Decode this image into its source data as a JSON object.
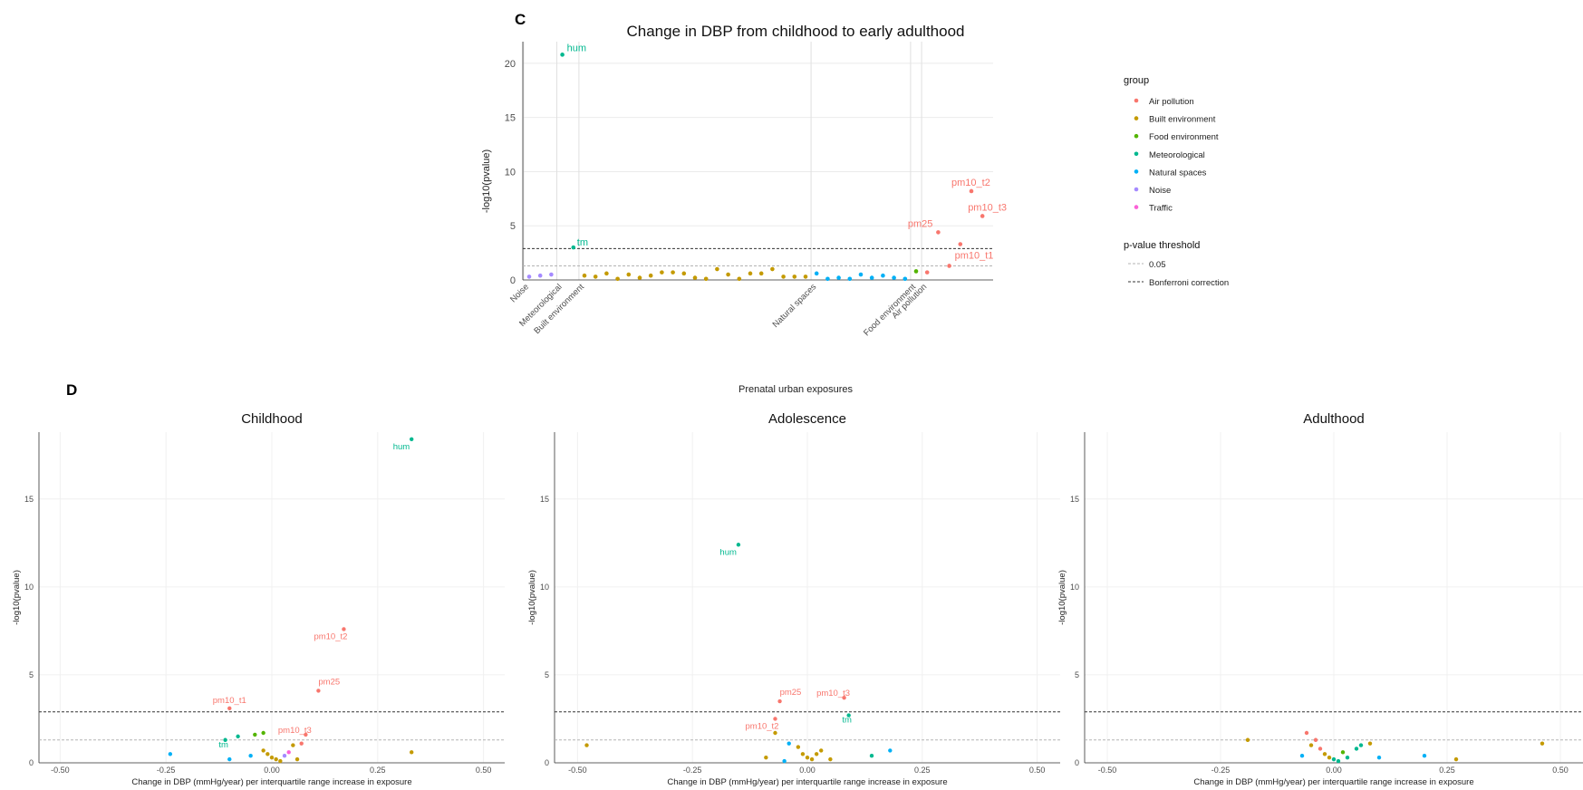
{
  "panel_c": {
    "letter": "C",
    "title": "Change in DBP from childhood to early adulthood",
    "xlabel": "Prenatal urban exposures",
    "ylabel": "-log10(pvalue)"
  },
  "panel_d": {
    "letter": "D",
    "xlabel": "Change in DBP (mmHg/year) per interquartile range increase in exposure",
    "ylabel": "-log10(pvalue)"
  },
  "legend": {
    "group_title": "group",
    "threshold_title": "p-value threshold",
    "threshold_items": [
      "0.05",
      "Bonferroni correction"
    ]
  },
  "colors": {
    "Air pollution": "#F8766D",
    "Built environment": "#C49A00",
    "Food environment": "#53B400",
    "Meteorological": "#00B88F",
    "Natural spaces": "#00B0F6",
    "Noise": "#A58AFF",
    "Traffic": "#FB61D7",
    "threshold_dark": "#333333",
    "threshold_light": "#b3b3b3"
  },
  "chart_data": [
    {
      "type": "scatter",
      "title": "Change in DBP from childhood to early adulthood",
      "xlabel": "Prenatal urban exposures",
      "ylabel": "-log10(pvalue)",
      "ylim": [
        0,
        22
      ],
      "yticks": [
        0,
        5,
        10,
        15,
        20
      ],
      "categories": [
        "Noise",
        "Traffic",
        "Meteorological",
        "Built environment",
        "Natural spaces",
        "Food environment",
        "Air pollution"
      ],
      "thresholds": {
        "p_0.05": 1.3,
        "bonferroni": 2.9
      },
      "legend_position": "right",
      "grid": true,
      "points": [
        {
          "i": 1,
          "y": 0.3,
          "group": "Noise"
        },
        {
          "i": 2,
          "y": 0.4,
          "group": "Noise"
        },
        {
          "i": 3,
          "y": 0.5,
          "group": "Noise"
        },
        {
          "i": 4,
          "y": 20.8,
          "group": "Meteorological",
          "label": "hum"
        },
        {
          "i": 5,
          "y": 3.0,
          "group": "Meteorological",
          "label": "tm"
        },
        {
          "i": 6,
          "y": 0.4,
          "group": "Built environment"
        },
        {
          "i": 7,
          "y": 0.3,
          "group": "Built environment"
        },
        {
          "i": 8,
          "y": 0.6,
          "group": "Built environment"
        },
        {
          "i": 9,
          "y": 0.1,
          "group": "Built environment"
        },
        {
          "i": 10,
          "y": 0.5,
          "group": "Built environment"
        },
        {
          "i": 11,
          "y": 0.2,
          "group": "Built environment"
        },
        {
          "i": 12,
          "y": 0.4,
          "group": "Built environment"
        },
        {
          "i": 13,
          "y": 0.7,
          "group": "Built environment"
        },
        {
          "i": 14,
          "y": 0.7,
          "group": "Built environment"
        },
        {
          "i": 15,
          "y": 0.6,
          "group": "Built environment"
        },
        {
          "i": 16,
          "y": 0.2,
          "group": "Built environment"
        },
        {
          "i": 17,
          "y": 0.1,
          "group": "Built environment"
        },
        {
          "i": 18,
          "y": 1.0,
          "group": "Built environment"
        },
        {
          "i": 19,
          "y": 0.5,
          "group": "Built environment"
        },
        {
          "i": 20,
          "y": 0.1,
          "group": "Built environment"
        },
        {
          "i": 21,
          "y": 0.6,
          "group": "Built environment"
        },
        {
          "i": 22,
          "y": 0.6,
          "group": "Built environment"
        },
        {
          "i": 23,
          "y": 1.0,
          "group": "Built environment"
        },
        {
          "i": 24,
          "y": 0.3,
          "group": "Built environment"
        },
        {
          "i": 25,
          "y": 0.3,
          "group": "Built environment"
        },
        {
          "i": 26,
          "y": 0.3,
          "group": "Built environment"
        },
        {
          "i": 27,
          "y": 0.6,
          "group": "Natural spaces"
        },
        {
          "i": 28,
          "y": 0.1,
          "group": "Natural spaces"
        },
        {
          "i": 29,
          "y": 0.2,
          "group": "Natural spaces"
        },
        {
          "i": 30,
          "y": 0.1,
          "group": "Natural spaces"
        },
        {
          "i": 31,
          "y": 0.5,
          "group": "Natural spaces"
        },
        {
          "i": 32,
          "y": 0.2,
          "group": "Natural spaces"
        },
        {
          "i": 33,
          "y": 0.4,
          "group": "Natural spaces"
        },
        {
          "i": 34,
          "y": 0.2,
          "group": "Natural spaces"
        },
        {
          "i": 35,
          "y": 0.1,
          "group": "Natural spaces"
        },
        {
          "i": 36,
          "y": 0.8,
          "group": "Food environment"
        },
        {
          "i": 37,
          "y": 0.7,
          "group": "Air pollution"
        },
        {
          "i": 38,
          "y": 4.4,
          "group": "Air pollution",
          "label": "pm25"
        },
        {
          "i": 39,
          "y": 1.3,
          "group": "Air pollution",
          "label": "pm10_t1"
        },
        {
          "i": 40,
          "y": 3.3,
          "group": "Air pollution"
        },
        {
          "i": 41,
          "y": 8.2,
          "group": "Air pollution",
          "label": "pm10_t2"
        },
        {
          "i": 42,
          "y": 5.9,
          "group": "Air pollution",
          "label": "pm10_t3"
        }
      ]
    },
    {
      "type": "scatter",
      "title": "Childhood",
      "xlabel": "Change in DBP (mmHg/year) per interquartile range increase in exposure",
      "ylabel": "-log10(pvalue)",
      "xlim": [
        -0.55,
        0.55
      ],
      "ylim": [
        0,
        18.8
      ],
      "xticks": [
        -0.5,
        -0.25,
        0.0,
        0.25,
        0.5
      ],
      "yticks": [
        0,
        5,
        10,
        15
      ],
      "thresholds": {
        "p_0.05": 1.3,
        "bonferroni": 2.9
      },
      "points": [
        {
          "x": 0.33,
          "y": 18.4,
          "group": "Meteorological",
          "label": "hum"
        },
        {
          "x": 0.17,
          "y": 7.6,
          "group": "Air pollution",
          "label": "pm10_t2"
        },
        {
          "x": 0.11,
          "y": 4.1,
          "group": "Air pollution",
          "label": "pm25"
        },
        {
          "x": -0.1,
          "y": 3.1,
          "group": "Air pollution",
          "label": "pm10_t1"
        },
        {
          "x": 0.08,
          "y": 1.6,
          "group": "Air pollution",
          "label": "pm10_t3"
        },
        {
          "x": -0.11,
          "y": 1.3,
          "group": "Meteorological",
          "label": "tm"
        },
        {
          "x": -0.24,
          "y": 0.5,
          "group": "Natural spaces"
        },
        {
          "x": -0.1,
          "y": 0.2,
          "group": "Natural spaces"
        },
        {
          "x": -0.08,
          "y": 1.5,
          "group": "Meteorological"
        },
        {
          "x": -0.04,
          "y": 1.6,
          "group": "Food environment"
        },
        {
          "x": -0.02,
          "y": 1.7,
          "group": "Food environment"
        },
        {
          "x": -0.05,
          "y": 0.4,
          "group": "Natural spaces"
        },
        {
          "x": -0.02,
          "y": 0.7,
          "group": "Built environment"
        },
        {
          "x": -0.01,
          "y": 0.5,
          "group": "Built environment"
        },
        {
          "x": 0.0,
          "y": 0.3,
          "group": "Built environment"
        },
        {
          "x": 0.01,
          "y": 0.2,
          "group": "Built environment"
        },
        {
          "x": 0.02,
          "y": 0.1,
          "group": "Built environment"
        },
        {
          "x": 0.03,
          "y": 0.4,
          "group": "Noise"
        },
        {
          "x": 0.04,
          "y": 0.6,
          "group": "Traffic"
        },
        {
          "x": 0.05,
          "y": 1.0,
          "group": "Built environment"
        },
        {
          "x": 0.06,
          "y": 0.2,
          "group": "Built environment"
        },
        {
          "x": 0.07,
          "y": 1.1,
          "group": "Air pollution"
        },
        {
          "x": 0.33,
          "y": 0.6,
          "group": "Built environment"
        }
      ]
    },
    {
      "type": "scatter",
      "title": "Adolescence",
      "xlabel": "Change in DBP (mmHg/year) per interquartile range increase in exposure",
      "ylabel": "-log10(pvalue)",
      "xlim": [
        -0.55,
        0.55
      ],
      "ylim": [
        0,
        18.8
      ],
      "xticks": [
        -0.5,
        -0.25,
        0.0,
        0.25,
        0.5
      ],
      "yticks": [
        0,
        5,
        10,
        15
      ],
      "thresholds": {
        "p_0.05": 1.3,
        "bonferroni": 2.9
      },
      "points": [
        {
          "x": -0.15,
          "y": 12.4,
          "group": "Meteorological",
          "label": "hum"
        },
        {
          "x": -0.06,
          "y": 3.5,
          "group": "Air pollution",
          "label": "pm25"
        },
        {
          "x": 0.08,
          "y": 3.7,
          "group": "Air pollution",
          "label": "pm10_t3"
        },
        {
          "x": -0.07,
          "y": 2.5,
          "group": "Air pollution",
          "label": "pm10_t2"
        },
        {
          "x": 0.09,
          "y": 2.7,
          "group": "Meteorological",
          "label": "tm"
        },
        {
          "x": -0.48,
          "y": 1.0,
          "group": "Built environment"
        },
        {
          "x": -0.07,
          "y": 1.7,
          "group": "Built environment"
        },
        {
          "x": -0.04,
          "y": 1.1,
          "group": "Natural spaces"
        },
        {
          "x": -0.02,
          "y": 0.9,
          "group": "Built environment"
        },
        {
          "x": -0.01,
          "y": 0.5,
          "group": "Built environment"
        },
        {
          "x": 0.0,
          "y": 0.3,
          "group": "Built environment"
        },
        {
          "x": 0.01,
          "y": 0.2,
          "group": "Built environment"
        },
        {
          "x": 0.02,
          "y": 0.5,
          "group": "Built environment"
        },
        {
          "x": 0.03,
          "y": 0.7,
          "group": "Built environment"
        },
        {
          "x": 0.05,
          "y": 0.2,
          "group": "Built environment"
        },
        {
          "x": -0.09,
          "y": 0.3,
          "group": "Built environment"
        },
        {
          "x": -0.05,
          "y": 0.1,
          "group": "Natural spaces"
        },
        {
          "x": 0.14,
          "y": 0.4,
          "group": "Meteorological"
        },
        {
          "x": 0.18,
          "y": 0.7,
          "group": "Natural spaces"
        }
      ]
    },
    {
      "type": "scatter",
      "title": "Adulthood",
      "xlabel": "Change in DBP (mmHg/year) per interquartile range increase in exposure",
      "ylabel": "-log10(pvalue)",
      "xlim": [
        -0.55,
        0.55
      ],
      "ylim": [
        0,
        18.8
      ],
      "xticks": [
        -0.5,
        -0.25,
        0.0,
        0.25,
        0.5
      ],
      "yticks": [
        0,
        5,
        10,
        15
      ],
      "thresholds": {
        "p_0.05": 1.3,
        "bonferroni": 2.9
      },
      "points": [
        {
          "x": -0.19,
          "y": 1.3,
          "group": "Built environment"
        },
        {
          "x": -0.06,
          "y": 1.7,
          "group": "Air pollution"
        },
        {
          "x": -0.04,
          "y": 1.3,
          "group": "Air pollution"
        },
        {
          "x": -0.05,
          "y": 1.0,
          "group": "Built environment"
        },
        {
          "x": -0.03,
          "y": 0.8,
          "group": "Air pollution"
        },
        {
          "x": -0.02,
          "y": 0.5,
          "group": "Built environment"
        },
        {
          "x": -0.01,
          "y": 0.3,
          "group": "Built environment"
        },
        {
          "x": 0.0,
          "y": 0.2,
          "group": "Meteorological"
        },
        {
          "x": 0.01,
          "y": 0.1,
          "group": "Meteorological"
        },
        {
          "x": 0.02,
          "y": 0.6,
          "group": "Food environment"
        },
        {
          "x": 0.03,
          "y": 0.3,
          "group": "Meteorological"
        },
        {
          "x": 0.05,
          "y": 0.8,
          "group": "Meteorological"
        },
        {
          "x": 0.06,
          "y": 1.0,
          "group": "Meteorological"
        },
        {
          "x": 0.08,
          "y": 1.1,
          "group": "Built environment"
        },
        {
          "x": -0.07,
          "y": 0.4,
          "group": "Natural spaces"
        },
        {
          "x": 0.1,
          "y": 0.3,
          "group": "Natural spaces"
        },
        {
          "x": 0.2,
          "y": 0.4,
          "group": "Natural spaces"
        },
        {
          "x": 0.27,
          "y": 0.2,
          "group": "Built environment"
        },
        {
          "x": 0.46,
          "y": 1.1,
          "group": "Built environment"
        }
      ]
    }
  ]
}
